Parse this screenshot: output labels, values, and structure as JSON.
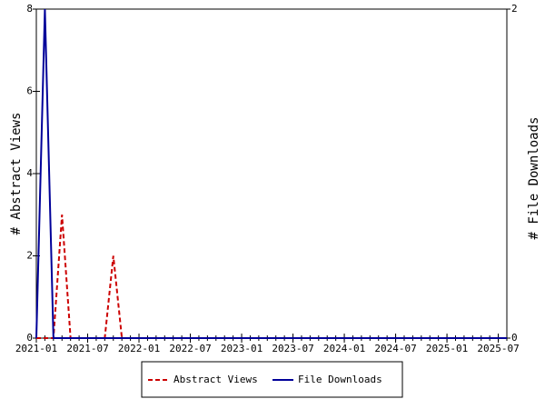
{
  "chart_data": {
    "type": "line",
    "x": [
      "2021-01",
      "2021-02",
      "2021-03",
      "2021-04",
      "2021-05",
      "2021-06",
      "2021-07",
      "2021-08",
      "2021-09",
      "2021-10",
      "2021-11",
      "2021-12",
      "2022-01",
      "2022-02",
      "2022-03",
      "2022-04",
      "2022-05",
      "2022-06",
      "2022-07",
      "2022-08",
      "2022-09",
      "2022-10",
      "2022-11",
      "2022-12",
      "2023-01",
      "2023-02",
      "2023-03",
      "2023-04",
      "2023-05",
      "2023-06",
      "2023-07",
      "2023-08",
      "2023-09",
      "2023-10",
      "2023-11",
      "2023-12",
      "2024-01",
      "2024-02",
      "2024-03",
      "2024-04",
      "2024-05",
      "2024-06",
      "2024-07",
      "2024-08",
      "2024-09",
      "2024-10",
      "2024-11",
      "2024-12",
      "2025-01",
      "2025-02",
      "2025-03",
      "2025-04",
      "2025-05",
      "2025-06",
      "2025-07",
      "2025-08"
    ],
    "xlim": [
      "2021-01",
      "2025-08"
    ],
    "xticks": [
      "2021-01",
      "2021-07",
      "2022-01",
      "2022-07",
      "2023-01",
      "2023-07",
      "2024-01",
      "2024-07",
      "2025-01",
      "2025-07"
    ],
    "ylabel": "# Abstract Views",
    "y2label": "# File Downloads",
    "ylim": [
      0,
      8
    ],
    "yticks": [
      0,
      2,
      4,
      6,
      8
    ],
    "y2lim": [
      0,
      2
    ],
    "y2ticks": [
      0,
      2
    ],
    "legend": "bottom",
    "series": [
      {
        "name": "Abstract Views",
        "color": "#cc0000",
        "dash": true,
        "values": [
          0,
          0,
          0,
          3,
          0,
          0,
          0,
          0,
          0,
          2,
          0,
          0,
          0,
          0,
          0,
          0,
          0,
          0,
          0,
          0,
          0,
          0,
          0,
          0,
          0,
          0,
          0,
          0,
          0,
          0,
          0,
          0,
          0,
          0,
          0,
          0,
          0,
          0,
          0,
          0,
          0,
          0,
          0,
          0,
          0,
          0,
          0,
          0,
          0,
          0,
          0,
          0,
          0,
          0,
          0,
          0
        ]
      },
      {
        "name": "File Downloads",
        "color": "#000099",
        "axis": "y2",
        "values": [
          0,
          2,
          0,
          0,
          0,
          0,
          0,
          0,
          0,
          0,
          0,
          0,
          0,
          0,
          0,
          0,
          0,
          0,
          0,
          0,
          0,
          0,
          0,
          0,
          0,
          0,
          0,
          0,
          0,
          0,
          0,
          0,
          0,
          0,
          0,
          0,
          0,
          0,
          0,
          0,
          0,
          0,
          0,
          0,
          0,
          0,
          0,
          0,
          0,
          0,
          0,
          0,
          0,
          0,
          0,
          0
        ]
      }
    ]
  }
}
